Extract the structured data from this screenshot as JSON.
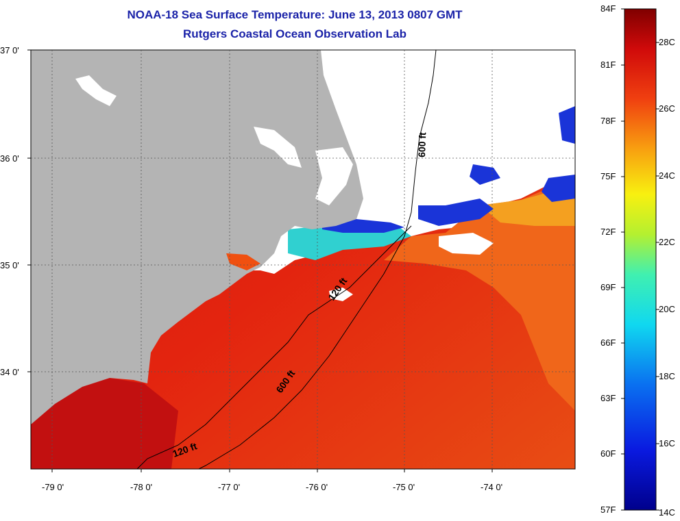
{
  "title": {
    "line1": "NOAA-18 Sea Surface Temperature:  June 13, 2013 0807 GMT",
    "line2": "Rutgers Coastal Ocean Observation Lab"
  },
  "axes": {
    "lat_ticks": [
      "37 0'",
      "36 0'",
      "35 0'",
      "34 0'"
    ],
    "lon_ticks": [
      "-79 0'",
      "-78 0'",
      "-77 0'",
      "-76 0'",
      "-75 0'",
      "-74 0'"
    ]
  },
  "contours": {
    "label_600_north": "600 ft",
    "label_120_mid": "120 ft",
    "label_600_south": "600 ft",
    "label_120_south": "120 ft"
  },
  "colorbar": {
    "fahrenheit": [
      "84F",
      "81F",
      "78F",
      "75F",
      "72F",
      "69F",
      "66F",
      "63F",
      "60F",
      "57F"
    ],
    "celsius": [
      "28C",
      "26C",
      "24C",
      "22C",
      "20C",
      "18C",
      "16C",
      "14C"
    ]
  },
  "colors": {
    "title": "#1a22a8",
    "land": "#b4b4b4",
    "warm": "#e01a10",
    "hot": "#b00a0a",
    "orange": "#f07a1a",
    "cold": "#0a20c8"
  }
}
